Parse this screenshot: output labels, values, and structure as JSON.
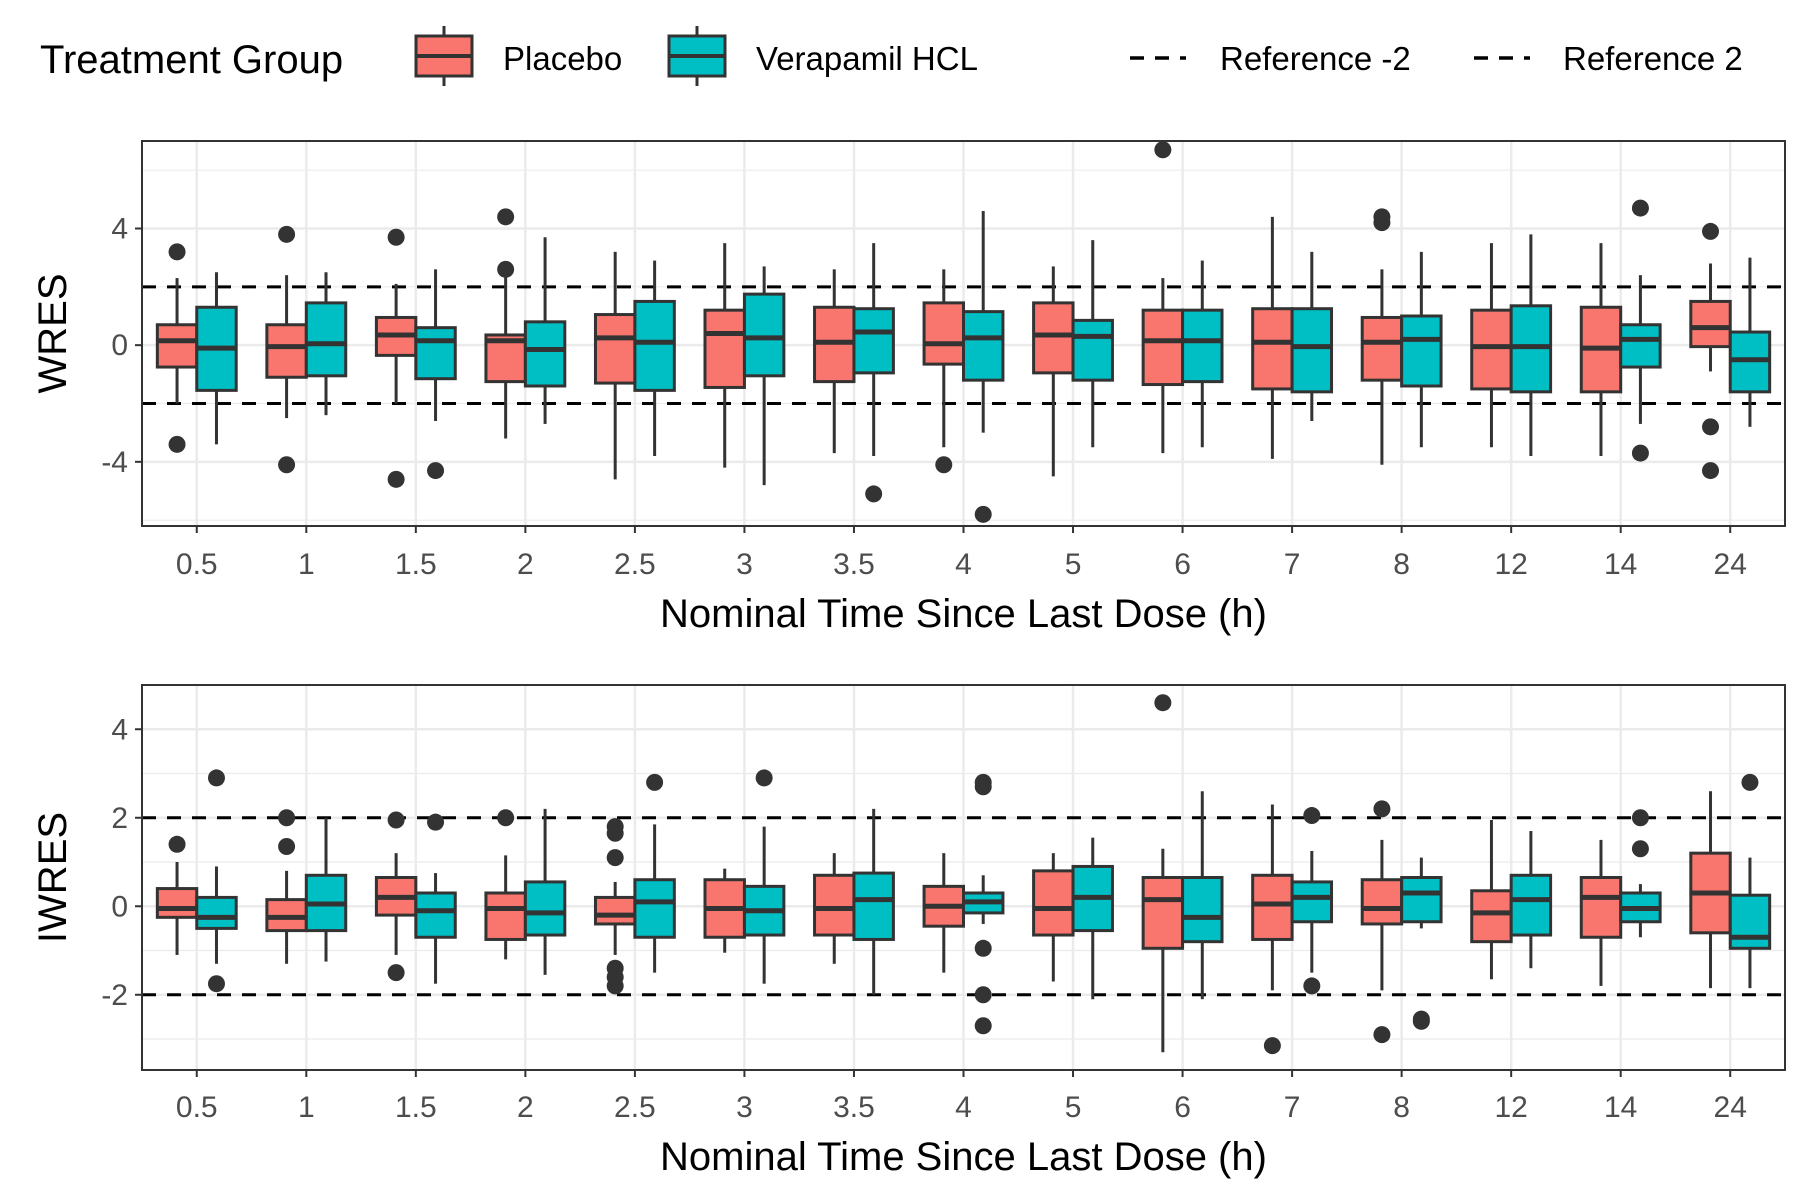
{
  "legend": {
    "title": "Treatment Group",
    "items": [
      {
        "label": "Placebo",
        "color": "#F8766D"
      },
      {
        "label": "Verapamil HCL",
        "color": "#00BFC4"
      }
    ],
    "lines": [
      {
        "label": "Reference -2"
      },
      {
        "label": "Reference 2"
      }
    ],
    "position": "top"
  },
  "chart_data": [
    {
      "type": "boxplot",
      "ylabel": "WRES",
      "xlabel": "Nominal Time Since Last Dose (h)",
      "ylim": [
        -6.2,
        7.0
      ],
      "yticks": [
        -4,
        0,
        4
      ],
      "reference_lines": [
        -2,
        2
      ],
      "grid": true,
      "categories": [
        "0.5",
        "1",
        "1.5",
        "2",
        "2.5",
        "3",
        "3.5",
        "4",
        "5",
        "6",
        "7",
        "8",
        "12",
        "14",
        "24"
      ],
      "series": [
        {
          "name": "Placebo",
          "color": "#F8766D",
          "boxes": [
            {
              "q1": -0.75,
              "median": 0.15,
              "q3": 0.7,
              "low": -2.0,
              "high": 2.3,
              "outliers": [
                3.2,
                -3.4
              ]
            },
            {
              "q1": -1.1,
              "median": -0.05,
              "q3": 0.7,
              "low": -2.5,
              "high": 2.4,
              "outliers": [
                3.8,
                -4.1
              ]
            },
            {
              "q1": -0.35,
              "median": 0.35,
              "q3": 0.95,
              "low": -2.0,
              "high": 2.1,
              "outliers": [
                3.7,
                -4.6
              ]
            },
            {
              "q1": -1.25,
              "median": 0.15,
              "q3": 0.35,
              "low": -3.2,
              "high": 2.5,
              "outliers": [
                4.4,
                2.6
              ]
            },
            {
              "q1": -1.3,
              "median": 0.25,
              "q3": 1.05,
              "low": -4.6,
              "high": 3.2,
              "outliers": []
            },
            {
              "q1": -1.45,
              "median": 0.4,
              "q3": 1.2,
              "low": -4.2,
              "high": 3.5,
              "outliers": []
            },
            {
              "q1": -1.25,
              "median": 0.1,
              "q3": 1.3,
              "low": -3.7,
              "high": 2.6,
              "outliers": []
            },
            {
              "q1": -0.65,
              "median": 0.05,
              "q3": 1.45,
              "low": -3.5,
              "high": 2.6,
              "outliers": [
                -4.1
              ]
            },
            {
              "q1": -0.95,
              "median": 0.35,
              "q3": 1.45,
              "low": -4.5,
              "high": 2.7,
              "outliers": []
            },
            {
              "q1": -1.35,
              "median": 0.15,
              "q3": 1.2,
              "low": -3.7,
              "high": 2.3,
              "outliers": [
                6.7
              ]
            },
            {
              "q1": -1.5,
              "median": 0.1,
              "q3": 1.25,
              "low": -3.9,
              "high": 4.4,
              "outliers": []
            },
            {
              "q1": -1.2,
              "median": 0.1,
              "q3": 0.95,
              "low": -4.1,
              "high": 2.6,
              "outliers": [
                4.4,
                4.2
              ]
            },
            {
              "q1": -1.5,
              "median": -0.05,
              "q3": 1.2,
              "low": -3.5,
              "high": 3.5,
              "outliers": []
            },
            {
              "q1": -1.6,
              "median": -0.1,
              "q3": 1.3,
              "low": -3.8,
              "high": 3.5,
              "outliers": []
            },
            {
              "q1": -0.05,
              "median": 0.6,
              "q3": 1.5,
              "low": -0.9,
              "high": 2.8,
              "outliers": [
                3.9,
                -2.8,
                -4.3
              ]
            }
          ]
        },
        {
          "name": "Verapamil HCL",
          "color": "#00BFC4",
          "boxes": [
            {
              "q1": -1.55,
              "median": -0.1,
              "q3": 1.3,
              "low": -3.4,
              "high": 2.5,
              "outliers": []
            },
            {
              "q1": -1.05,
              "median": 0.05,
              "q3": 1.45,
              "low": -2.4,
              "high": 2.5,
              "outliers": []
            },
            {
              "q1": -1.15,
              "median": 0.15,
              "q3": 0.6,
              "low": -2.6,
              "high": 2.6,
              "outliers": [
                -4.3
              ]
            },
            {
              "q1": -1.4,
              "median": -0.15,
              "q3": 0.8,
              "low": -2.7,
              "high": 3.7,
              "outliers": []
            },
            {
              "q1": -1.55,
              "median": 0.1,
              "q3": 1.5,
              "low": -3.8,
              "high": 2.9,
              "outliers": []
            },
            {
              "q1": -1.05,
              "median": 0.25,
              "q3": 1.75,
              "low": -4.8,
              "high": 2.7,
              "outliers": []
            },
            {
              "q1": -0.95,
              "median": 0.45,
              "q3": 1.25,
              "low": -3.8,
              "high": 3.5,
              "outliers": [
                -5.1
              ]
            },
            {
              "q1": -1.2,
              "median": 0.25,
              "q3": 1.15,
              "low": -3.0,
              "high": 4.6,
              "outliers": [
                -5.8
              ]
            },
            {
              "q1": -1.2,
              "median": 0.3,
              "q3": 0.85,
              "low": -3.5,
              "high": 3.6,
              "outliers": []
            },
            {
              "q1": -1.25,
              "median": 0.15,
              "q3": 1.2,
              "low": -3.5,
              "high": 2.9,
              "outliers": []
            },
            {
              "q1": -1.6,
              "median": -0.05,
              "q3": 1.25,
              "low": -2.6,
              "high": 3.2,
              "outliers": []
            },
            {
              "q1": -1.4,
              "median": 0.2,
              "q3": 1.0,
              "low": -3.5,
              "high": 3.2,
              "outliers": []
            },
            {
              "q1": -1.6,
              "median": -0.05,
              "q3": 1.35,
              "low": -3.8,
              "high": 3.8,
              "outliers": []
            },
            {
              "q1": -0.75,
              "median": 0.2,
              "q3": 0.7,
              "low": -2.7,
              "high": 2.4,
              "outliers": [
                4.7,
                -3.7
              ]
            },
            {
              "q1": -1.6,
              "median": -0.5,
              "q3": 0.45,
              "low": -2.8,
              "high": 3.0,
              "outliers": []
            }
          ]
        }
      ]
    },
    {
      "type": "boxplot",
      "ylabel": "IWRES",
      "xlabel": "Nominal Time Since Last Dose (h)",
      "ylim": [
        -3.7,
        5.0
      ],
      "yticks": [
        -2,
        0,
        2,
        4
      ],
      "reference_lines": [
        -2,
        2
      ],
      "grid": true,
      "categories": [
        "0.5",
        "1",
        "1.5",
        "2",
        "2.5",
        "3",
        "3.5",
        "4",
        "5",
        "6",
        "7",
        "8",
        "12",
        "14",
        "24"
      ],
      "series": [
        {
          "name": "Placebo",
          "color": "#F8766D",
          "boxes": [
            {
              "q1": -0.25,
              "median": -0.05,
              "q3": 0.4,
              "low": -1.1,
              "high": 1.0,
              "outliers": [
                1.4
              ]
            },
            {
              "q1": -0.55,
              "median": -0.25,
              "q3": 0.15,
              "low": -1.3,
              "high": 0.8,
              "outliers": [
                2.0,
                1.35
              ]
            },
            {
              "q1": -0.2,
              "median": 0.2,
              "q3": 0.65,
              "low": -1.1,
              "high": 1.2,
              "outliers": [
                1.95,
                -1.5
              ]
            },
            {
              "q1": -0.75,
              "median": -0.05,
              "q3": 0.3,
              "low": -1.2,
              "high": 1.15,
              "outliers": [
                2.0
              ]
            },
            {
              "q1": -0.4,
              "median": -0.2,
              "q3": 0.2,
              "low": -1.1,
              "high": 0.55,
              "outliers": [
                1.8,
                1.65,
                1.1,
                -1.4,
                -1.6,
                -1.8
              ]
            },
            {
              "q1": -0.7,
              "median": -0.05,
              "q3": 0.6,
              "low": -1.05,
              "high": 0.85,
              "outliers": []
            },
            {
              "q1": -0.65,
              "median": -0.05,
              "q3": 0.7,
              "low": -1.3,
              "high": 1.2,
              "outliers": []
            },
            {
              "q1": -0.45,
              "median": 0.0,
              "q3": 0.45,
              "low": -1.5,
              "high": 1.2,
              "outliers": []
            },
            {
              "q1": -0.65,
              "median": -0.05,
              "q3": 0.8,
              "low": -1.7,
              "high": 1.2,
              "outliers": []
            },
            {
              "q1": -0.95,
              "median": 0.15,
              "q3": 0.65,
              "low": -3.3,
              "high": 1.3,
              "outliers": [
                4.6
              ]
            },
            {
              "q1": -0.75,
              "median": 0.05,
              "q3": 0.7,
              "low": -1.9,
              "high": 2.3,
              "outliers": [
                -3.15
              ]
            },
            {
              "q1": -0.4,
              "median": -0.05,
              "q3": 0.6,
              "low": -1.9,
              "high": 1.5,
              "outliers": [
                2.2,
                -2.9
              ]
            },
            {
              "q1": -0.8,
              "median": -0.15,
              "q3": 0.35,
              "low": -1.65,
              "high": 1.95,
              "outliers": []
            },
            {
              "q1": -0.7,
              "median": 0.2,
              "q3": 0.65,
              "low": -1.8,
              "high": 1.5,
              "outliers": []
            },
            {
              "q1": -0.6,
              "median": 0.3,
              "q3": 1.2,
              "low": -1.85,
              "high": 2.6,
              "outliers": []
            }
          ]
        },
        {
          "name": "Verapamil HCL",
          "color": "#00BFC4",
          "boxes": [
            {
              "q1": -0.5,
              "median": -0.25,
              "q3": 0.2,
              "low": -1.3,
              "high": 0.9,
              "outliers": [
                2.9,
                -1.75
              ]
            },
            {
              "q1": -0.55,
              "median": 0.05,
              "q3": 0.7,
              "low": -1.25,
              "high": 2.0,
              "outliers": []
            },
            {
              "q1": -0.7,
              "median": -0.1,
              "q3": 0.3,
              "low": -1.75,
              "high": 0.75,
              "outliers": [
                1.9
              ]
            },
            {
              "q1": -0.65,
              "median": -0.15,
              "q3": 0.55,
              "low": -1.55,
              "high": 2.2,
              "outliers": []
            },
            {
              "q1": -0.7,
              "median": 0.1,
              "q3": 0.6,
              "low": -1.5,
              "high": 1.85,
              "outliers": [
                2.8
              ]
            },
            {
              "q1": -0.65,
              "median": -0.1,
              "q3": 0.45,
              "low": -1.75,
              "high": 1.8,
              "outliers": [
                2.9
              ]
            },
            {
              "q1": -0.75,
              "median": 0.15,
              "q3": 0.75,
              "low": -2.0,
              "high": 2.2,
              "outliers": []
            },
            {
              "q1": -0.15,
              "median": 0.1,
              "q3": 0.3,
              "low": -0.4,
              "high": 0.7,
              "outliers": [
                2.8,
                2.7,
                -0.95,
                -2.0,
                -2.7
              ]
            },
            {
              "q1": -0.55,
              "median": 0.2,
              "q3": 0.9,
              "low": -2.1,
              "high": 1.55,
              "outliers": []
            },
            {
              "q1": -0.8,
              "median": -0.25,
              "q3": 0.65,
              "low": -2.1,
              "high": 2.6,
              "outliers": []
            },
            {
              "q1": -0.35,
              "median": 0.2,
              "q3": 0.55,
              "low": -1.5,
              "high": 1.25,
              "outliers": [
                2.05,
                -1.8
              ]
            },
            {
              "q1": -0.35,
              "median": 0.3,
              "q3": 0.65,
              "low": -0.5,
              "high": 1.1,
              "outliers": [
                -2.55,
                -2.6
              ]
            },
            {
              "q1": -0.65,
              "median": 0.15,
              "q3": 0.7,
              "low": -1.4,
              "high": 1.7,
              "outliers": []
            },
            {
              "q1": -0.35,
              "median": -0.05,
              "q3": 0.3,
              "low": -0.7,
              "high": 0.5,
              "outliers": [
                2.0,
                1.3
              ]
            },
            {
              "q1": -0.95,
              "median": -0.7,
              "q3": 0.25,
              "low": -1.85,
              "high": 1.1,
              "outliers": [
                2.8
              ]
            }
          ]
        }
      ]
    }
  ]
}
